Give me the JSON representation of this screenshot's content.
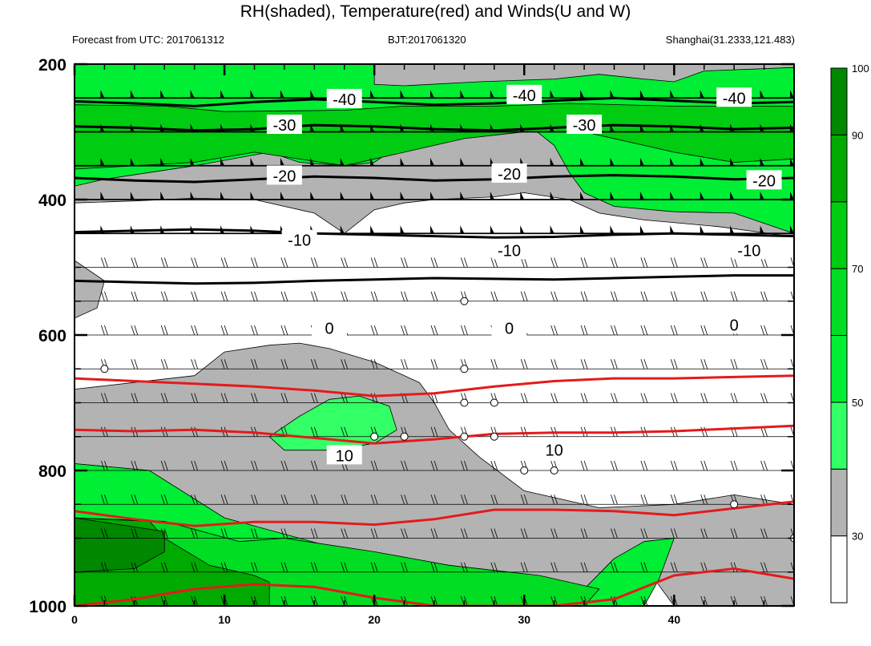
{
  "title": "RH(shaded), Temperature(red) and Winds(U and W)",
  "subtitle_left": "Forecast from UTC: 2017061312",
  "subtitle_center": "BJT:2017061320",
  "subtitle_right": "Shanghai(31.2333,121.483)",
  "chart_data": {
    "type": "contour",
    "x_ticks": [
      "0",
      "10",
      "20",
      "30",
      "40"
    ],
    "xlim": [
      0,
      48
    ],
    "y_ticks": [
      "200",
      "400",
      "600",
      "800",
      "1000"
    ],
    "ylim": [
      1000,
      200
    ],
    "y_scale": "linear (pressure, inverted)",
    "colorbar": {
      "labels": [
        "30",
        "50",
        "70",
        "90",
        "100"
      ],
      "bins": [
        {
          "lo": 0,
          "hi": 30,
          "color": "#ffffff"
        },
        {
          "lo": 30,
          "hi": 50,
          "color": "#b3b3b3"
        },
        {
          "lo": 50,
          "hi": 60,
          "color": "#33ff66"
        },
        {
          "lo": 60,
          "hi": 70,
          "color": "#00ee33"
        },
        {
          "lo": 70,
          "hi": 80,
          "color": "#00dd22"
        },
        {
          "lo": 80,
          "hi": 90,
          "color": "#00cc11"
        },
        {
          "lo": 90,
          "hi": 100,
          "color": "#00aa00"
        },
        {
          "lo": 100,
          "hi": 110,
          "color": "#008800"
        }
      ]
    },
    "temperature_contours_black": [
      {
        "level": -40,
        "y": [
          255,
          258,
          262,
          256,
          252,
          256,
          260,
          258,
          254,
          250,
          254,
          258,
          256
        ]
      },
      {
        "level": -30,
        "y": [
          292,
          294,
          298,
          296,
          290,
          292,
          296,
          298,
          294,
          290,
          292,
          296,
          294
        ]
      },
      {
        "level": -20,
        "y": [
          368,
          372,
          374,
          370,
          366,
          368,
          372,
          370,
          366,
          364,
          366,
          370,
          368
        ]
      },
      {
        "level": -10,
        "y": [
          448,
          446,
          444,
          446,
          450,
          452,
          454,
          456,
          455,
          452,
          450,
          452,
          454
        ]
      },
      {
        "level": 0,
        "y": [
          520,
          522,
          524,
          523,
          520,
          518,
          516,
          517,
          518,
          516,
          514,
          512,
          512
        ]
      }
    ],
    "temperature_contours_red": [
      {
        "level": 10,
        "y": [
          664,
          668,
          672,
          676,
          682,
          690,
          686,
          676,
          668,
          664,
          664,
          662,
          660
        ]
      },
      {
        "level": 10,
        "y": [
          740,
          742,
          740,
          744,
          752,
          760,
          754,
          746,
          744,
          744,
          742,
          738,
          734
        ]
      },
      {
        "level": 20,
        "y": [
          860,
          872,
          882,
          876,
          876,
          880,
          872,
          858,
          858,
          860,
          866,
          856,
          846
        ]
      },
      {
        "level": 20,
        "y": [
          1000,
          990,
          975,
          968,
          972,
          988,
          1000,
          1000,
          1000,
          990,
          955,
          945,
          960
        ]
      }
    ],
    "temperature_labels": [
      "-40",
      "-30",
      "-20",
      "-10",
      "0",
      "10"
    ],
    "wind_barbs": "vertical profile wind barbs at each level, ~2 hour spacing",
    "calm_markers": [
      {
        "x": 2,
        "p": 650
      },
      {
        "x": 26,
        "p": 550
      },
      {
        "x": 26,
        "p": 650
      },
      {
        "x": 26,
        "p": 700
      },
      {
        "x": 28,
        "p": 700
      },
      {
        "x": 20,
        "p": 750
      },
      {
        "x": 22,
        "p": 750
      },
      {
        "x": 26,
        "p": 750
      },
      {
        "x": 28,
        "p": 750
      },
      {
        "x": 30,
        "p": 800
      },
      {
        "x": 32,
        "p": 800
      },
      {
        "x": 44,
        "p": 850
      },
      {
        "x": 48,
        "p": 900
      }
    ]
  }
}
